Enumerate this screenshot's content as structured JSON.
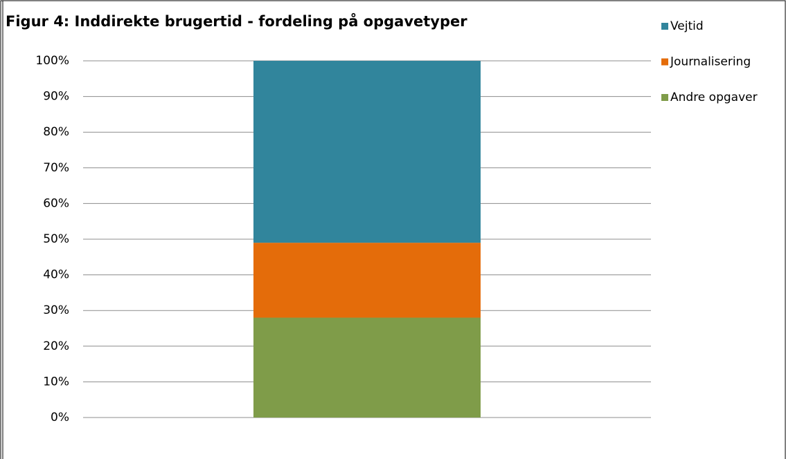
{
  "chart_data": {
    "type": "bar",
    "stacked": true,
    "title": "Figur 4: Inddirekte brugertid - fordeling på opgavetyper",
    "categories": [
      null
    ],
    "series": [
      {
        "name": "Vejtid",
        "color": "#31859c",
        "values": [
          51
        ]
      },
      {
        "name": "Journalisering",
        "color": "#e46c0a",
        "values": [
          21
        ]
      },
      {
        "name": "Andre opgaver",
        "color": "#7f9c49",
        "values": [
          28
        ]
      }
    ],
    "ylim": [
      0,
      100
    ],
    "yticks": [
      {
        "value": 0,
        "label": "0%"
      },
      {
        "value": 10,
        "label": "10%"
      },
      {
        "value": 20,
        "label": "20%"
      },
      {
        "value": 30,
        "label": "30%"
      },
      {
        "value": 40,
        "label": "40%"
      },
      {
        "value": 50,
        "label": "50%"
      },
      {
        "value": 60,
        "label": "60%"
      },
      {
        "value": 70,
        "label": "70%"
      },
      {
        "value": 80,
        "label": "80%"
      },
      {
        "value": 90,
        "label": "90%"
      },
      {
        "value": 100,
        "label": "100%"
      }
    ],
    "grid": true,
    "legend": "right"
  }
}
